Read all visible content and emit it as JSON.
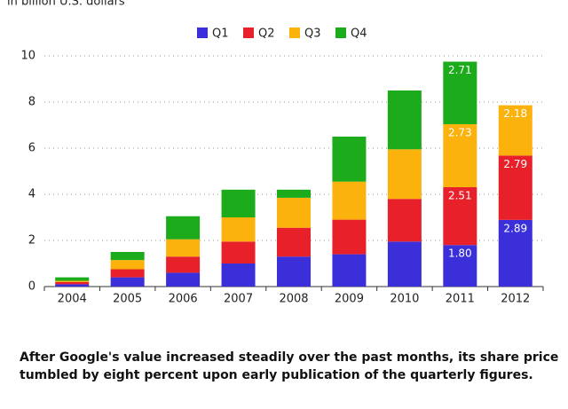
{
  "chart_data": {
    "type": "stacked_bar",
    "subtitle": "in billion U.S. dollars",
    "categories": [
      "2004",
      "2005",
      "2006",
      "2007",
      "2008",
      "2009",
      "2010",
      "2011",
      "2012"
    ],
    "series": [
      {
        "name": "Q1",
        "color": "#3a2fd8",
        "values": [
          0.1,
          0.4,
          0.6,
          1.0,
          1.3,
          1.4,
          1.95,
          1.8,
          2.89
        ],
        "value_labels": [
          null,
          null,
          null,
          null,
          null,
          null,
          null,
          "1.80",
          "2.89"
        ]
      },
      {
        "name": "Q2",
        "color": "#e8202a",
        "values": [
          0.1,
          0.35,
          0.7,
          0.95,
          1.25,
          1.5,
          1.85,
          2.51,
          2.79
        ],
        "value_labels": [
          null,
          null,
          null,
          null,
          null,
          null,
          null,
          "2.51",
          "2.79"
        ]
      },
      {
        "name": "Q3",
        "color": "#fbb20c",
        "values": [
          0.05,
          0.4,
          0.75,
          1.05,
          1.3,
          1.65,
          2.15,
          2.73,
          2.18
        ],
        "value_labels": [
          null,
          null,
          null,
          null,
          null,
          null,
          null,
          "2.73",
          "2.18"
        ]
      },
      {
        "name": "Q4",
        "color": "#1bab1b",
        "values": [
          0.15,
          0.35,
          1.0,
          1.2,
          0.35,
          1.95,
          2.55,
          2.71,
          null
        ],
        "value_labels": [
          null,
          null,
          null,
          null,
          null,
          null,
          null,
          "2.71",
          null
        ]
      }
    ],
    "ylim": [
      0,
      10
    ],
    "yticks": [
      0,
      2,
      4,
      6,
      8,
      10
    ],
    "grid": true,
    "legend": "top",
    "caption": [
      "After Google's value increased steadily over the past months, its share price",
      "tumbled by eight percent upon early publication of the quarterly figures."
    ]
  }
}
